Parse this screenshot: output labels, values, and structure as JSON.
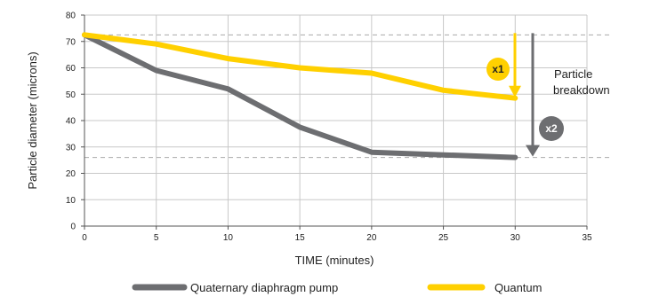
{
  "chart_data": {
    "type": "line",
    "title": "",
    "xlabel": "TIME (minutes)",
    "ylabel": "Particle diameter (microns)",
    "xlim": [
      0,
      35
    ],
    "ylim": [
      0,
      80
    ],
    "xticks": [
      0,
      5,
      10,
      15,
      20,
      25,
      30,
      35
    ],
    "yticks": [
      0,
      10,
      20,
      30,
      40,
      50,
      60,
      70,
      80
    ],
    "grid": true,
    "legend_position": "bottom",
    "series": [
      {
        "name": "Quaternary diaphragm pump",
        "color": "#6d6e71",
        "points": [
          [
            0,
            72.5
          ],
          [
            5,
            59
          ],
          [
            10,
            52
          ],
          [
            15,
            37.5
          ],
          [
            20,
            28
          ],
          [
            25,
            27
          ],
          [
            30,
            26
          ]
        ]
      },
      {
        "name": "Quantum",
        "color": "#ffd000",
        "points": [
          [
            0,
            72.5
          ],
          [
            5,
            69
          ],
          [
            10,
            63.5
          ],
          [
            15,
            60
          ],
          [
            20,
            58
          ],
          [
            25,
            51.5
          ],
          [
            30,
            48.5
          ]
        ]
      }
    ],
    "reference_lines": [
      72.5,
      26
    ],
    "annotations": {
      "breakdown_label_line1": "Particle",
      "breakdown_label_line2": "breakdown",
      "quantum_badge": "x1",
      "pump_badge": "x2"
    }
  }
}
